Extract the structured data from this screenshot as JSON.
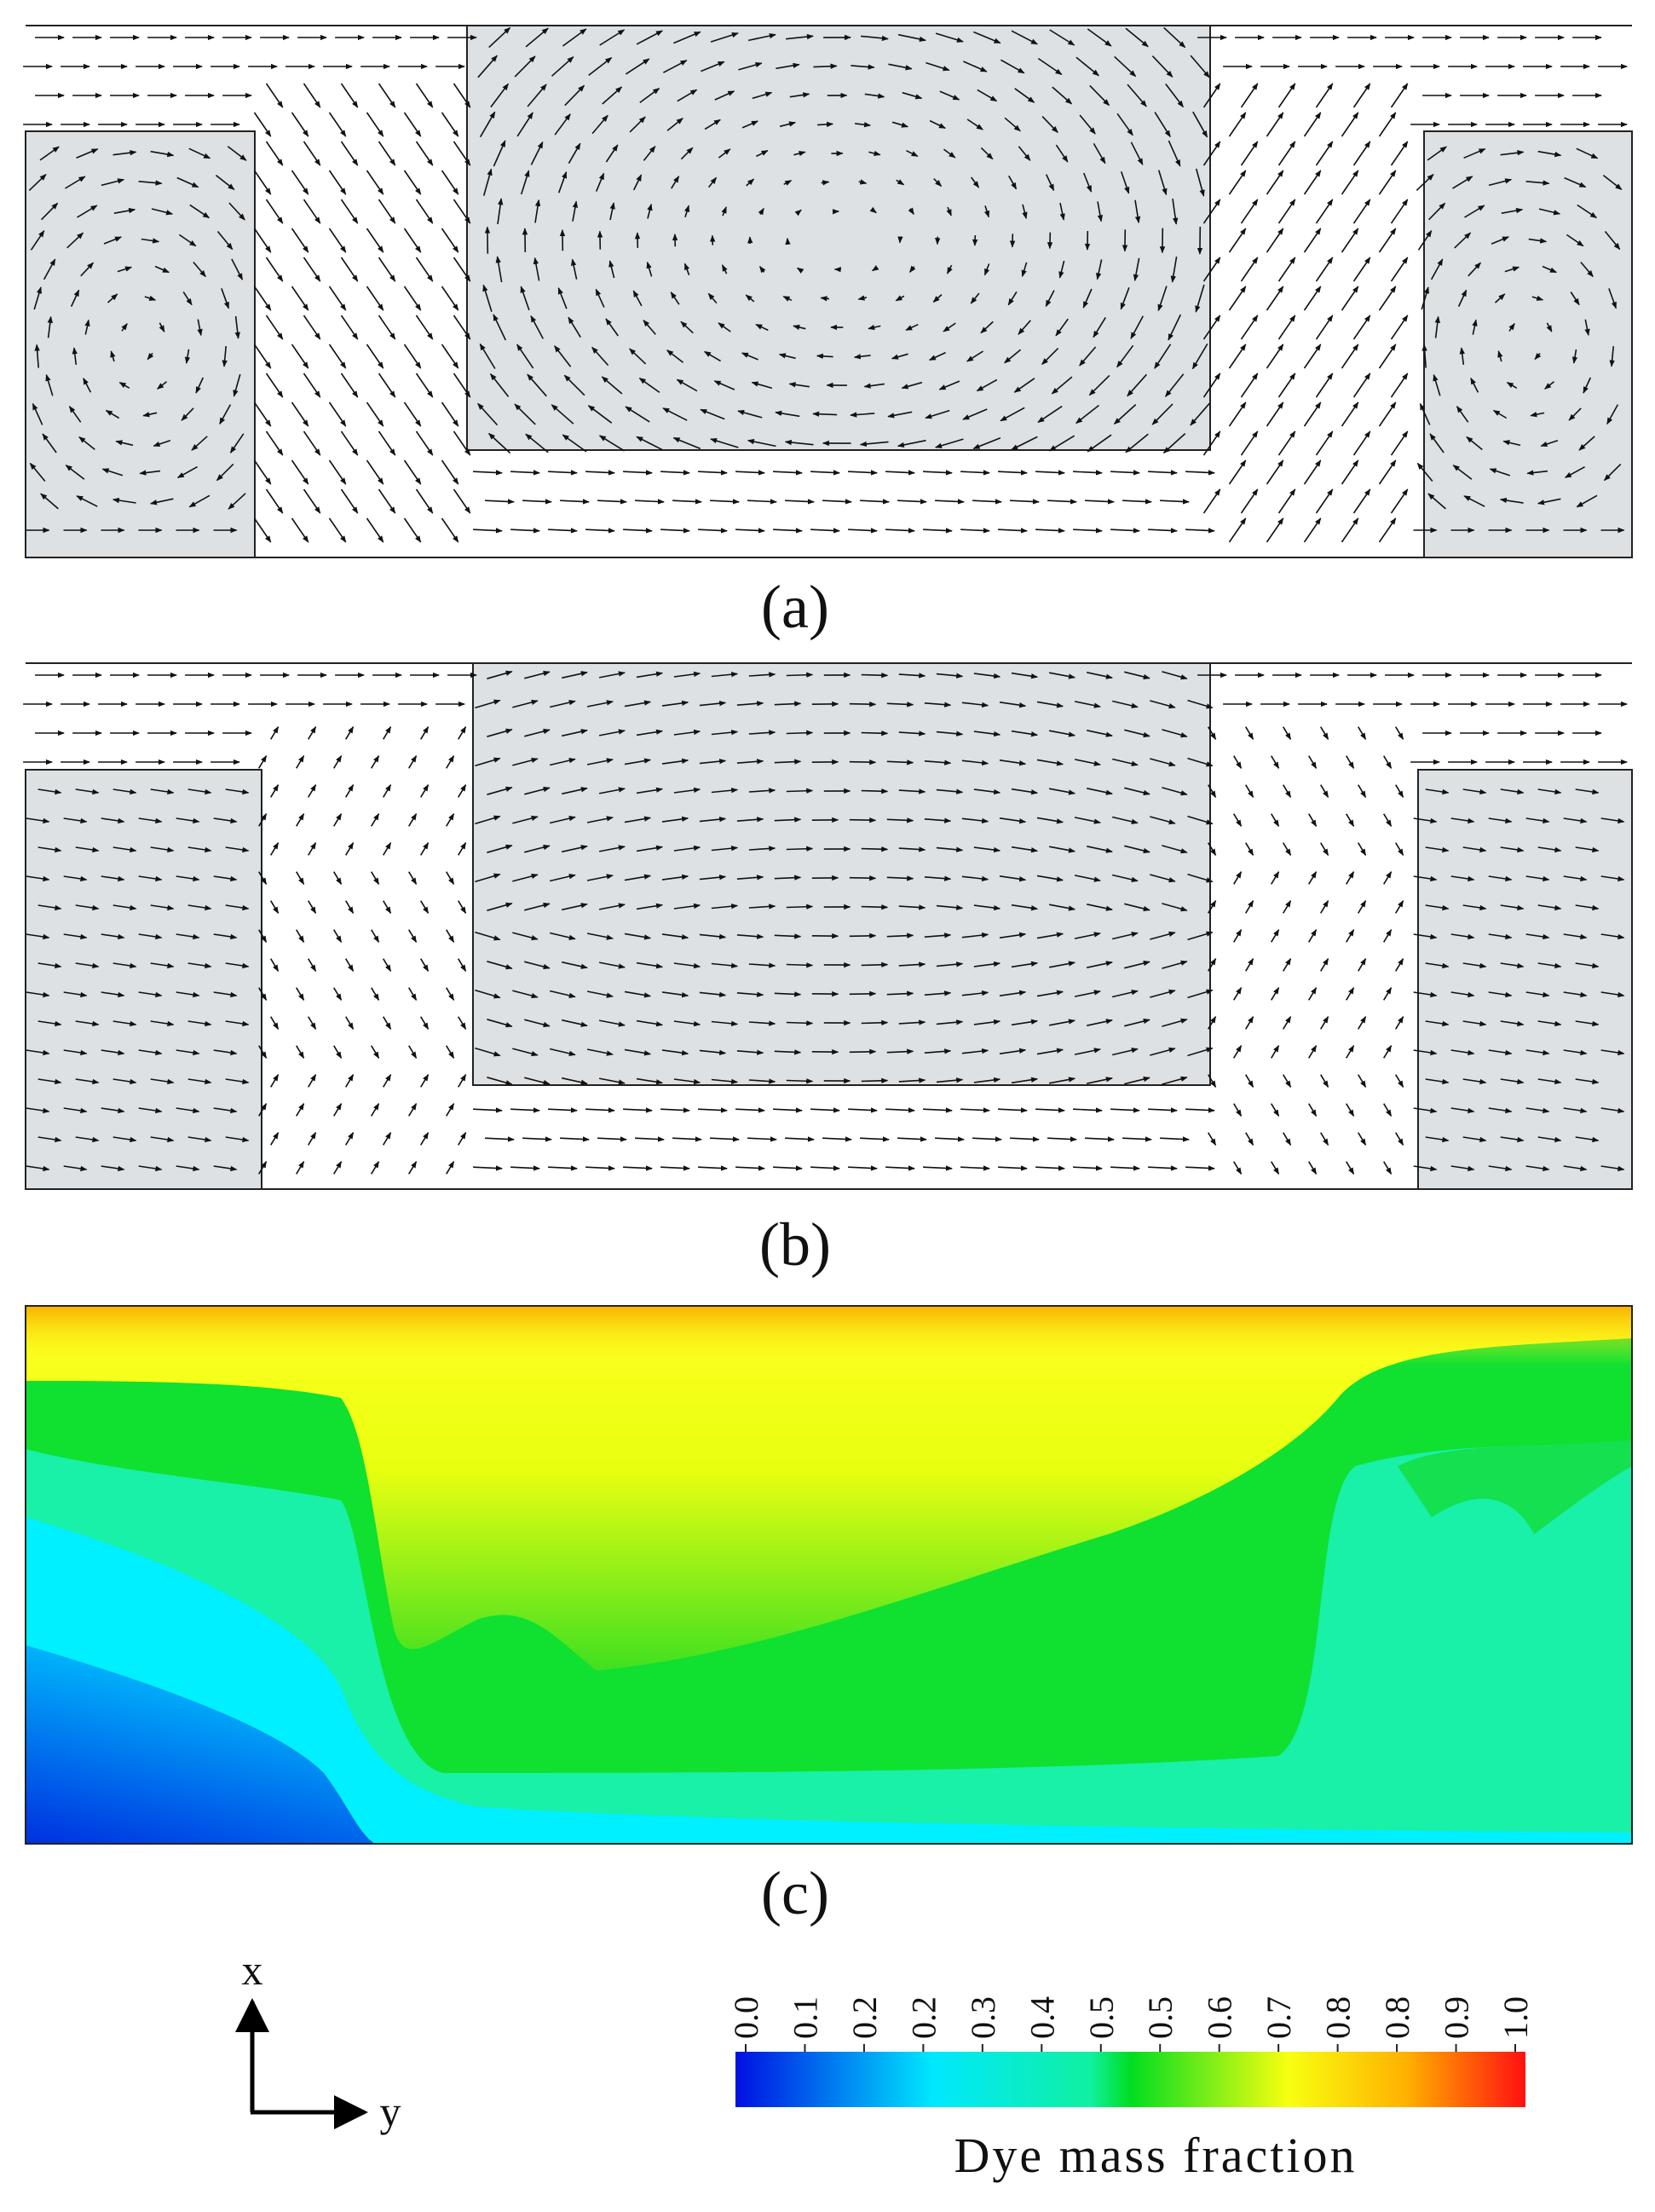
{
  "panels": [
    {
      "label": "(a)"
    },
    {
      "label": "(b)"
    },
    {
      "label": "(c)"
    }
  ],
  "axes": {
    "x_label": "x",
    "y_label": "y"
  },
  "colorbar": {
    "title": "Dye mass fraction",
    "tick_labels": [
      "0.0",
      "0.1",
      "0.2",
      "0.2",
      "0.3",
      "0.4",
      "0.5",
      "0.5",
      "0.6",
      "0.7",
      "0.8",
      "0.8",
      "0.9",
      "1.0"
    ]
  }
}
